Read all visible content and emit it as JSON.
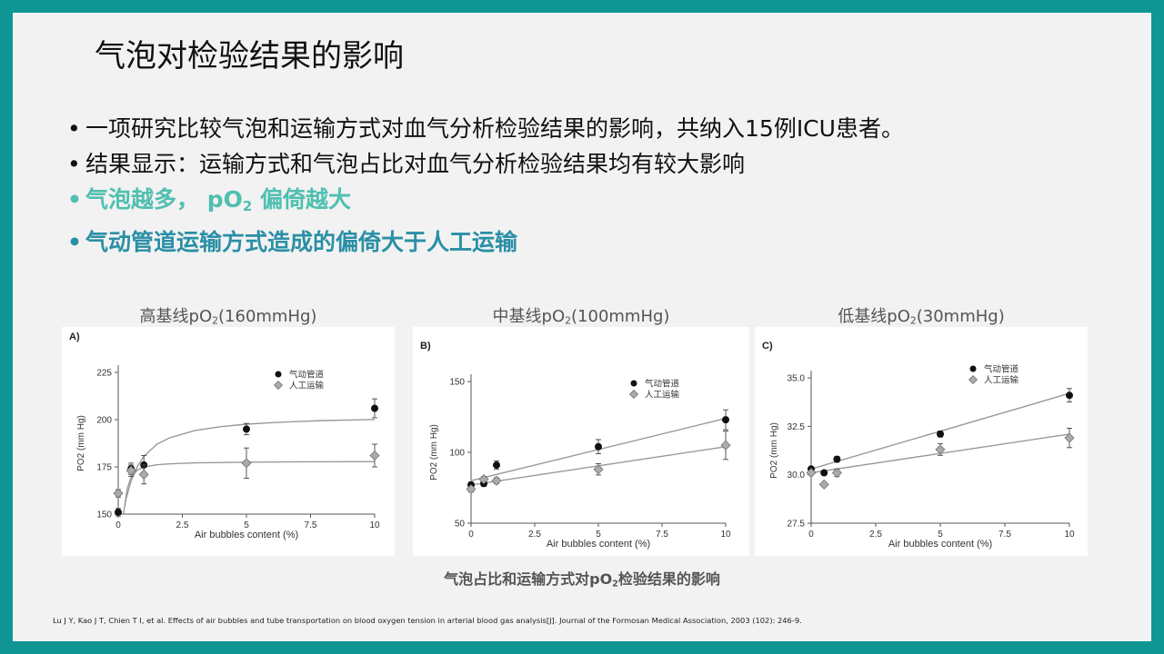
{
  "slide": {
    "title": "气泡对检验结果的影响",
    "bullets": [
      "一项研究比较气泡和运输方式对血气分析检验结果的影响，共纳入15例ICU患者。",
      "结果显示：运输方式和气泡占比对血气分析检验结果均有较大影响"
    ],
    "highlight1_pre": "气泡越多，  pO",
    "highlight1_sub": "2",
    "highlight1_post": " 偏倚越大",
    "highlight2": "气动管道运输方式造成的偏倚大于人工运输",
    "bullet_dot": "•",
    "caption_pre": "气泡占比和运输方式对pO",
    "caption_sub": "2",
    "caption_post": "检验结果的影响",
    "reference": "Lu J Y, Kao J T, Chien T I, et al. Effects of air bubbles and tube transportation on blood oxygen tension in arterial blood gas analysis[J]. Journal of the Formosan Medical Association, 2003 (102): 246-9."
  },
  "chart_titles": [
    {
      "pre": "高基线pO",
      "sub": "2",
      "post": "(160mmHg)"
    },
    {
      "pre": "中基线pO",
      "sub": "2",
      "post": "(100mmHg)"
    },
    {
      "pre": "低基线pO",
      "sub": "2",
      "post": "(30mmHg)"
    }
  ],
  "chart_data": [
    {
      "type": "scatter",
      "panel_label": "A)",
      "xlabel": "Air bubbles content (%)",
      "ylabel": "PO2 (mm Hg)",
      "xlim": [
        0,
        10
      ],
      "ylim": [
        150,
        225
      ],
      "xticks": [
        0,
        2.5,
        5,
        7.5,
        10
      ],
      "xtick_labels": [
        "0",
        "2.5",
        "5",
        "7.5",
        "10"
      ],
      "yticks": [
        150,
        175,
        200,
        225
      ],
      "ytick_labels": [
        "150",
        "175",
        "200",
        "225"
      ],
      "legend": [
        "气动管道",
        "人工运输"
      ],
      "fit": "saturation curve",
      "series": [
        {
          "name": "气动管道",
          "marker": "circle",
          "color": "#111111",
          "x": [
            0,
            0.5,
            1,
            5,
            10
          ],
          "y": [
            151,
            174,
            176,
            195,
            206
          ],
          "err": [
            2,
            3,
            5,
            3,
            5
          ],
          "fit_x": [
            0.2,
            0.3,
            0.5,
            0.75,
            1,
            1.5,
            2,
            3,
            4,
            5,
            6,
            7,
            8,
            9,
            10
          ],
          "fit_y": [
            150,
            157.8,
            167.5,
            175.4,
            180.6,
            186.9,
            190.4,
            194.3,
            196.3,
            197.6,
            198.4,
            199.0,
            199.5,
            199.8,
            200.1
          ]
        },
        {
          "name": "人工运输",
          "marker": "diamond",
          "color": "#aaaaaa",
          "x": [
            0,
            0.5,
            1,
            5,
            10
          ],
          "y": [
            161,
            173,
            171,
            177,
            181
          ],
          "err": [
            2,
            3,
            5,
            8,
            6
          ],
          "fit_x": [
            0.25,
            0.35,
            0.5,
            0.75,
            1,
            1.5,
            2,
            3,
            5,
            7,
            10
          ],
          "fit_y": [
            154,
            163.4,
            169.5,
            173.3,
            174.9,
            176.1,
            176.6,
            177.1,
            177.5,
            177.7,
            177.8
          ]
        }
      ]
    },
    {
      "type": "scatter",
      "panel_label": "B)",
      "xlabel": "Air bubbles content (%)",
      "ylabel": "PO2 (mm Hg)",
      "xlim": [
        0,
        10
      ],
      "ylim": [
        50,
        150
      ],
      "xticks": [
        0,
        2.5,
        5,
        7.5,
        10
      ],
      "xtick_labels": [
        "0",
        "2.5",
        "5",
        "7.5",
        "10"
      ],
      "yticks": [
        50,
        100,
        150
      ],
      "ytick_labels": [
        "50",
        "100",
        "150"
      ],
      "legend": [
        "气动管道",
        "人工运输"
      ],
      "fit": "linear",
      "series": [
        {
          "name": "气动管道",
          "marker": "circle",
          "color": "#111111",
          "x": [
            0,
            0.5,
            1,
            5,
            10
          ],
          "y": [
            77,
            78,
            91,
            104,
            123
          ],
          "err": [
            2,
            2,
            3,
            5,
            7
          ],
          "fit_x": [
            0,
            10
          ],
          "fit_y": [
            80,
            124
          ]
        },
        {
          "name": "人工运输",
          "marker": "diamond",
          "color": "#aaaaaa",
          "x": [
            0,
            0.5,
            1,
            5,
            10
          ],
          "y": [
            74,
            81,
            80,
            88,
            105
          ],
          "err": [
            2,
            2,
            2,
            4,
            10
          ],
          "fit_x": [
            0,
            10
          ],
          "fit_y": [
            77,
            104
          ]
        }
      ]
    },
    {
      "type": "scatter",
      "panel_label": "C)",
      "xlabel": "Air bubbles content (%)",
      "ylabel": "PO2 (mm Hg)",
      "xlim": [
        0,
        10
      ],
      "ylim": [
        27.5,
        35
      ],
      "xticks": [
        0,
        2.5,
        5,
        7.5,
        10
      ],
      "xtick_labels": [
        "0",
        "2.5",
        "5",
        "7.5",
        "10"
      ],
      "yticks": [
        27.5,
        30,
        32.5,
        35
      ],
      "ytick_labels": [
        "27.5",
        "30.0",
        "32.5",
        "35.0"
      ],
      "legend": [
        "气动管道",
        "人工运输"
      ],
      "fit": "linear",
      "series": [
        {
          "name": "气动管道",
          "marker": "circle",
          "color": "#111111",
          "x": [
            0,
            0.5,
            1,
            5,
            10
          ],
          "y": [
            30.3,
            30.1,
            30.8,
            32.1,
            34.1
          ],
          "err": [
            0.1,
            0.1,
            0.15,
            0.15,
            0.35
          ],
          "fit_x": [
            0,
            10
          ],
          "fit_y": [
            30.3,
            34.2
          ]
        },
        {
          "name": "人工运输",
          "marker": "diamond",
          "color": "#aaaaaa",
          "x": [
            0,
            0.5,
            1,
            5,
            10
          ],
          "y": [
            30.1,
            29.5,
            30.1,
            31.3,
            31.9
          ],
          "err": [
            0.1,
            0.1,
            0.2,
            0.3,
            0.5
          ],
          "fit_x": [
            0,
            10
          ],
          "fit_y": [
            30.1,
            32.1
          ]
        }
      ]
    }
  ]
}
